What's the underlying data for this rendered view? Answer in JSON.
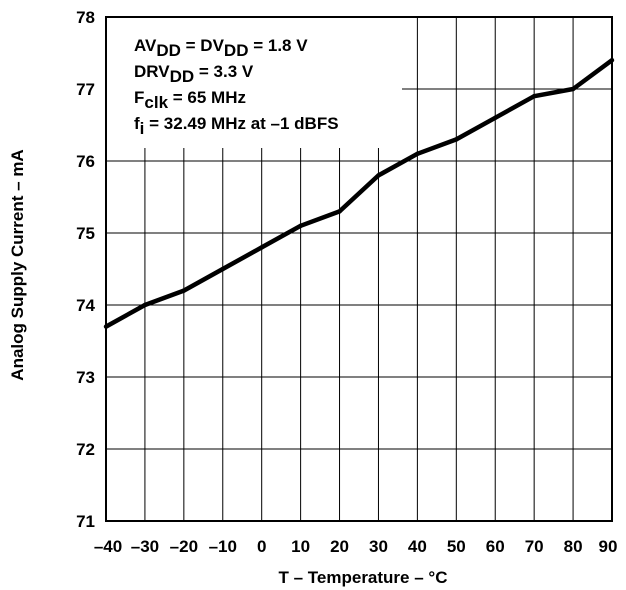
{
  "chart_data": {
    "type": "line",
    "title": "",
    "xlabel": "T – Temperature – °C",
    "ylabel": "Analog Supply Current – mA",
    "xlim": [
      -40,
      90
    ],
    "ylim": [
      71,
      78
    ],
    "x_ticks": [
      "–40",
      "–30",
      "–20",
      "–10",
      "0",
      "10",
      "20",
      "30",
      "40",
      "50",
      "60",
      "70",
      "80",
      "90"
    ],
    "y_ticks": [
      "71",
      "72",
      "73",
      "74",
      "75",
      "76",
      "77",
      "78"
    ],
    "grid": true,
    "series": [
      {
        "x": [
          -40,
          -30,
          -20,
          -10,
          0,
          10,
          20,
          30,
          40,
          50,
          60,
          70,
          80,
          90
        ],
        "y": [
          73.7,
          74.0,
          74.2,
          74.5,
          74.8,
          75.1,
          75.3,
          75.8,
          76.1,
          76.3,
          76.6,
          76.9,
          77.0,
          77.4
        ]
      }
    ],
    "annotations": [
      {
        "main": "AV",
        "sub": "DD",
        "tail": " = DV",
        "sub2": "DD",
        "tail2": " = 1.8 V"
      },
      {
        "main": "DRV",
        "sub": "DD",
        "tail": " = 3.3 V",
        "sub2": "",
        "tail2": ""
      },
      {
        "main": "F",
        "sub": "clk",
        "tail": " = 65 MHz",
        "sub2": "",
        "tail2": ""
      },
      {
        "main": "f",
        "sub": "i",
        "tail": " = 32.49 MHz at –1 dBFS",
        "sub2": "",
        "tail2": ""
      }
    ],
    "colors": {
      "line": "#000000",
      "grid": "#000000",
      "background": "#ffffff"
    }
  }
}
